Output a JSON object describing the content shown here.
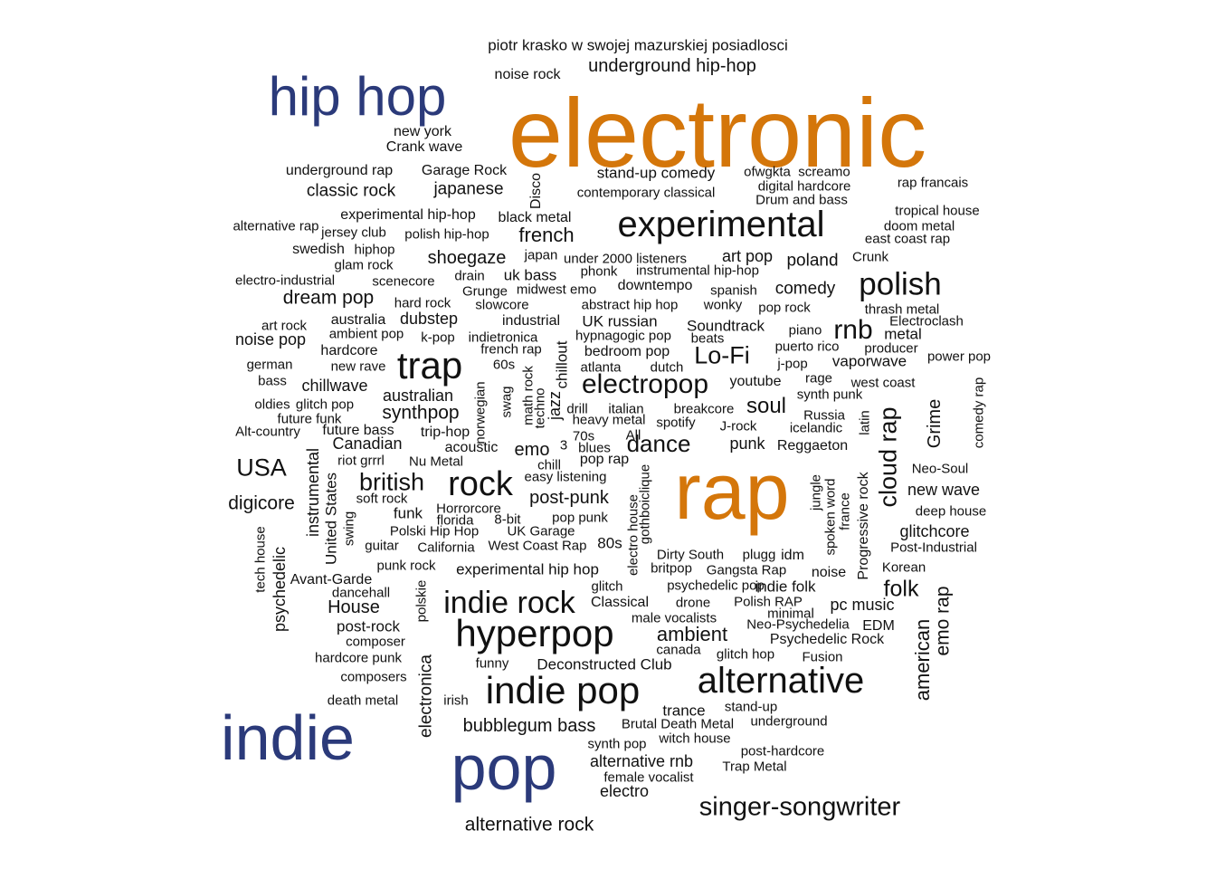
{
  "colors": {
    "orange": "#D4760A",
    "navy": "#2B3A7A",
    "black": "#111111"
  },
  "words": [
    {
      "text": "piotr krasko w swojej mazurskiej posiadlosci"
    },
    {
      "text": "noise rock"
    },
    {
      "text": "underground hip-hop"
    },
    {
      "text": "hip hop",
      "color": "navy"
    },
    {
      "text": "electronic",
      "color": "orange"
    },
    {
      "text": "new york"
    },
    {
      "text": "Crank wave"
    },
    {
      "text": "underground rap"
    },
    {
      "text": "Garage Rock"
    },
    {
      "text": "Disco",
      "rotated": true
    },
    {
      "text": "stand-up comedy"
    },
    {
      "text": "ofwgkta"
    },
    {
      "text": "screamo"
    },
    {
      "text": "classic rock"
    },
    {
      "text": "japanese"
    },
    {
      "text": "contemporary classical"
    },
    {
      "text": "digital hardcore"
    },
    {
      "text": "rap francais"
    },
    {
      "text": "Drum and bass"
    },
    {
      "text": "experimental hip-hop"
    },
    {
      "text": "black metal"
    },
    {
      "text": "experimental"
    },
    {
      "text": "tropical house"
    },
    {
      "text": "alternative rap"
    },
    {
      "text": "jersey club"
    },
    {
      "text": "polish hip-hop"
    },
    {
      "text": "french"
    },
    {
      "text": "doom metal"
    },
    {
      "text": "east coast rap"
    },
    {
      "text": "swedish"
    },
    {
      "text": "hiphop"
    },
    {
      "text": "shoegaze"
    },
    {
      "text": "japan"
    },
    {
      "text": "under 2000 listeners"
    },
    {
      "text": "art pop"
    },
    {
      "text": "poland"
    },
    {
      "text": "Crunk"
    },
    {
      "text": "glam rock"
    },
    {
      "text": "drain"
    },
    {
      "text": "uk bass"
    },
    {
      "text": "phonk"
    },
    {
      "text": "instrumental hip-hop"
    },
    {
      "text": "polish"
    },
    {
      "text": "electro-industrial"
    },
    {
      "text": "scenecore"
    },
    {
      "text": "Grunge"
    },
    {
      "text": "midwest emo"
    },
    {
      "text": "downtempo"
    },
    {
      "text": "spanish"
    },
    {
      "text": "comedy"
    },
    {
      "text": "dream pop"
    },
    {
      "text": "hard rock"
    },
    {
      "text": "slowcore"
    },
    {
      "text": "abstract hip hop"
    },
    {
      "text": "wonky"
    },
    {
      "text": "pop rock"
    },
    {
      "text": "thrash metal"
    },
    {
      "text": "dubstep"
    },
    {
      "text": "industrial"
    },
    {
      "text": "UK russian"
    },
    {
      "text": "Soundtrack"
    },
    {
      "text": "piano"
    },
    {
      "text": "rnb"
    },
    {
      "text": "Electroclash"
    },
    {
      "text": "art rock"
    },
    {
      "text": "australia"
    },
    {
      "text": "ambient pop"
    },
    {
      "text": "k-pop"
    },
    {
      "text": "indietronica"
    },
    {
      "text": "hypnagogic pop"
    },
    {
      "text": "beats"
    },
    {
      "text": "metal"
    },
    {
      "text": "noise pop"
    },
    {
      "text": "hardcore"
    },
    {
      "text": "french rap"
    },
    {
      "text": "bedroom pop"
    },
    {
      "text": "puerto rico"
    },
    {
      "text": "producer"
    },
    {
      "text": "Lo-Fi"
    },
    {
      "text": "trap"
    },
    {
      "text": "60s"
    },
    {
      "text": "german"
    },
    {
      "text": "new rave"
    },
    {
      "text": "atlanta"
    },
    {
      "text": "dutch"
    },
    {
      "text": "j-pop"
    },
    {
      "text": "vaporwave"
    },
    {
      "text": "power pop"
    },
    {
      "text": "bass"
    },
    {
      "text": "chillwave"
    },
    {
      "text": "electropop"
    },
    {
      "text": "youtube"
    },
    {
      "text": "rage"
    },
    {
      "text": "west coast"
    },
    {
      "text": "oldies"
    },
    {
      "text": "glitch pop"
    },
    {
      "text": "australian"
    },
    {
      "text": "synth punk"
    },
    {
      "text": "future funk"
    },
    {
      "text": "synthpop"
    },
    {
      "text": "drill"
    },
    {
      "text": "italian"
    },
    {
      "text": "breakcore"
    },
    {
      "text": "soul"
    },
    {
      "text": "Russia"
    },
    {
      "text": "heavy metal"
    },
    {
      "text": "spotify"
    },
    {
      "text": "J-rock"
    },
    {
      "text": "icelandic"
    },
    {
      "text": "Alt-country"
    },
    {
      "text": "future bass"
    },
    {
      "text": "trip-hop"
    },
    {
      "text": "70s"
    },
    {
      "text": "All"
    },
    {
      "text": "dance"
    },
    {
      "text": "Canadian"
    },
    {
      "text": "acoustic"
    },
    {
      "text": "emo"
    },
    {
      "text": "3"
    },
    {
      "text": "blues"
    },
    {
      "text": "punk"
    },
    {
      "text": "Reggaeton"
    },
    {
      "text": "riot grrrl"
    },
    {
      "text": "Nu Metal"
    },
    {
      "text": "pop rap"
    },
    {
      "text": "chill"
    },
    {
      "text": "USA"
    },
    {
      "text": "Neo-Soul"
    },
    {
      "text": "british"
    },
    {
      "text": "rock"
    },
    {
      "text": "easy listening"
    },
    {
      "text": "rap",
      "color": "orange"
    },
    {
      "text": "new wave"
    },
    {
      "text": "digicore"
    },
    {
      "text": "soft rock"
    },
    {
      "text": "post-punk"
    },
    {
      "text": "deep house"
    },
    {
      "text": "funk"
    },
    {
      "text": "Horrorcore"
    },
    {
      "text": "florida"
    },
    {
      "text": "8-bit"
    },
    {
      "text": "pop punk"
    },
    {
      "text": "glitchcore"
    },
    {
      "text": "Polski Hip Hop"
    },
    {
      "text": "UK Garage"
    },
    {
      "text": "guitar"
    },
    {
      "text": "California"
    },
    {
      "text": "West Coast Rap"
    },
    {
      "text": "80s"
    },
    {
      "text": "Dirty South"
    },
    {
      "text": "plugg"
    },
    {
      "text": "idm"
    },
    {
      "text": "Post-Industrial"
    },
    {
      "text": "punk rock"
    },
    {
      "text": "experimental hip hop"
    },
    {
      "text": "britpop"
    },
    {
      "text": "Gangsta Rap"
    },
    {
      "text": "noise"
    },
    {
      "text": "Korean"
    },
    {
      "text": "Avant-Garde"
    },
    {
      "text": "dancehall"
    },
    {
      "text": "glitch"
    },
    {
      "text": "psychedelic pop"
    },
    {
      "text": "indie folk"
    },
    {
      "text": "folk"
    },
    {
      "text": "indie rock"
    },
    {
      "text": "House"
    },
    {
      "text": "Classical"
    },
    {
      "text": "drone"
    },
    {
      "text": "Polish RAP"
    },
    {
      "text": "pc music"
    },
    {
      "text": "minimal"
    },
    {
      "text": "male vocalists"
    },
    {
      "text": "post-rock"
    },
    {
      "text": "hyperpop"
    },
    {
      "text": "Neo-Psychedelia"
    },
    {
      "text": "EDM"
    },
    {
      "text": "ambient"
    },
    {
      "text": "composer"
    },
    {
      "text": "Psychedelic Rock"
    },
    {
      "text": "canada"
    },
    {
      "text": "hardcore punk"
    },
    {
      "text": "glitch hop"
    },
    {
      "text": "Fusion"
    },
    {
      "text": "funny"
    },
    {
      "text": "Deconstructed Club"
    },
    {
      "text": "composers"
    },
    {
      "text": "alternative"
    },
    {
      "text": "indie pop"
    },
    {
      "text": "death metal"
    },
    {
      "text": "irish"
    },
    {
      "text": "stand-up"
    },
    {
      "text": "trance"
    },
    {
      "text": "underground"
    },
    {
      "text": "indie",
      "color": "navy"
    },
    {
      "text": "bubblegum bass"
    },
    {
      "text": "Brutal Death Metal"
    },
    {
      "text": "witch house"
    },
    {
      "text": "synth pop"
    },
    {
      "text": "post-hardcore"
    },
    {
      "text": "alternative rnb"
    },
    {
      "text": "Trap Metal"
    },
    {
      "text": "pop",
      "color": "navy"
    },
    {
      "text": "female vocalist"
    },
    {
      "text": "electro"
    },
    {
      "text": "singer-songwriter"
    },
    {
      "text": "alternative rock"
    },
    {
      "text": "instrumental",
      "rotated": true
    },
    {
      "text": "United States",
      "rotated": true
    },
    {
      "text": "swing",
      "rotated": true
    },
    {
      "text": "norwegian",
      "rotated": true
    },
    {
      "text": "swag",
      "rotated": true
    },
    {
      "text": "math rock",
      "rotated": true
    },
    {
      "text": "techno",
      "rotated": true
    },
    {
      "text": "jazz",
      "rotated": true
    },
    {
      "text": "chillout",
      "rotated": true
    },
    {
      "text": "gothboiclique",
      "rotated": true
    },
    {
      "text": "electro house",
      "rotated": true
    },
    {
      "text": "tech house",
      "rotated": true
    },
    {
      "text": "psychedelic",
      "rotated": true
    },
    {
      "text": "polskie",
      "rotated": true
    },
    {
      "text": "electronica",
      "rotated": true
    },
    {
      "text": "latin",
      "rotated": true
    },
    {
      "text": "cloud rap",
      "rotated": true
    },
    {
      "text": "jungle",
      "rotated": true
    },
    {
      "text": "spoken word",
      "rotated": true
    },
    {
      "text": "france",
      "rotated": true
    },
    {
      "text": "Progressive rock",
      "rotated": true
    },
    {
      "text": "Grime",
      "rotated": true
    },
    {
      "text": "comedy rap",
      "rotated": true
    },
    {
      "text": "american",
      "rotated": true
    },
    {
      "text": "emo rap",
      "rotated": true
    }
  ]
}
